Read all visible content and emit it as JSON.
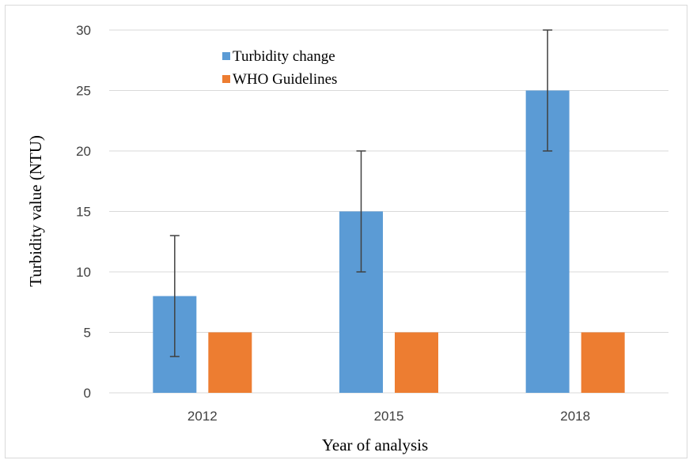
{
  "chart_data": {
    "type": "bar",
    "title": "",
    "xlabel": "Year of analysis",
    "ylabel": "Turbidity value (NTU)",
    "categories": [
      "2012",
      "2015",
      "2018"
    ],
    "ylim": [
      0,
      30
    ],
    "yticks": [
      0,
      5,
      10,
      15,
      20,
      25,
      30
    ],
    "grid": true,
    "legend_position": "top-left",
    "series": [
      {
        "name": "Turbidity change",
        "values": [
          8,
          15,
          25
        ],
        "error": [
          5,
          5,
          5
        ],
        "color": "#5b9bd5"
      },
      {
        "name": "WHO Guidelines",
        "values": [
          5,
          5,
          5
        ],
        "color": "#ed7d31"
      }
    ]
  }
}
